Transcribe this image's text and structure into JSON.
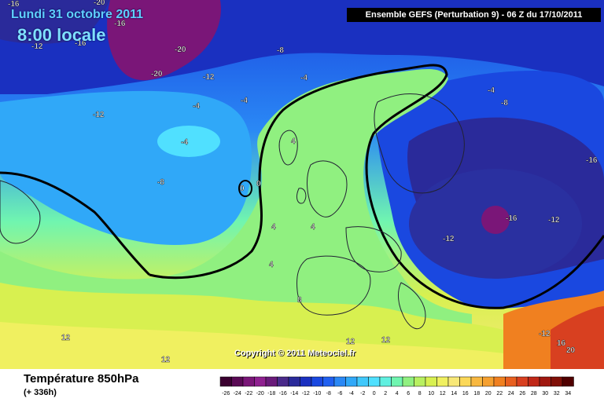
{
  "header": {
    "date": "Lundi 31 octobre 2011",
    "time": "8:00 locale",
    "model_run": "Ensemble GEFS (Perturbation 9)  -  06 Z du 17/10/2011"
  },
  "copyright": "Copyright © 2011 Meteociel.fr",
  "footer": {
    "title": "Température 850hPa",
    "lead_time": "(+ 336h)"
  },
  "colors": {
    "accent_text": "#5fd0ff",
    "header_bg": "#000000",
    "contour_0c": "#000000"
  },
  "legend": {
    "ticks": [
      "-26",
      "-24",
      "-22",
      "-20",
      "-18",
      "-16",
      "-14",
      "-12",
      "-10",
      "-8",
      "-6",
      "-4",
      "-2",
      "0",
      "2",
      "4",
      "6",
      "8",
      "10",
      "12",
      "14",
      "16",
      "18",
      "20",
      "22",
      "24",
      "26",
      "28",
      "30",
      "32",
      "34"
    ],
    "colors": [
      "#3a0030",
      "#5a0a55",
      "#7a1678",
      "#8f2090",
      "#6a1a7a",
      "#4a2a8a",
      "#2a2a9a",
      "#1a30c0",
      "#1a48e0",
      "#2060f0",
      "#2a88f5",
      "#30a8f8",
      "#40c8fb",
      "#50e0ff",
      "#60f0e0",
      "#70f5b0",
      "#90f080",
      "#b8f060",
      "#d8f050",
      "#f0f060",
      "#f8e878",
      "#fbd858",
      "#f8b840",
      "#f5a030",
      "#f08020",
      "#e86020",
      "#d84020",
      "#c02818",
      "#a01810",
      "#801008",
      "#500000"
    ]
  },
  "isotherm_labels": [
    "-16",
    "-20",
    "-16",
    "-12",
    "-16",
    "-20",
    "-20",
    "-8",
    "-12",
    "-4",
    "-12",
    "-4",
    "-4",
    "-4",
    "-8",
    "0",
    "0",
    "4",
    "4",
    "4",
    "4",
    "8",
    "12",
    "12",
    "12",
    "12",
    "-4",
    "-8",
    "-16",
    "-16",
    "-12",
    "-12",
    "-12",
    "16",
    "20"
  ]
}
